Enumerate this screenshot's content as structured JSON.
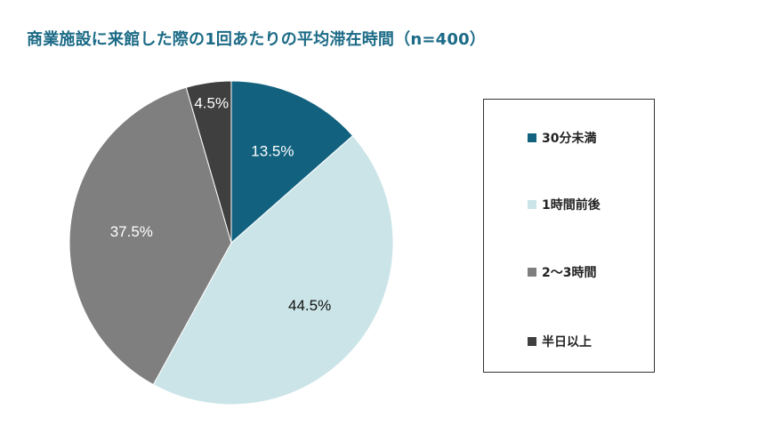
{
  "chart_data": {
    "type": "pie",
    "title": "商業施設に来館した際の1回あたりの平均滞在時間（n=400）",
    "categories": [
      "30分未満",
      "1時間前後",
      "2〜3時間",
      "半日以上"
    ],
    "values": [
      13.5,
      44.5,
      37.5,
      4.5
    ],
    "labels": [
      "13.5%",
      "44.5%",
      "37.5%",
      "4.5%"
    ],
    "colors": [
      "#12627f",
      "#cbe4e8",
      "#7f7f7f",
      "#3f3f3f"
    ],
    "label_colors": [
      "#ffffff",
      "#111111",
      "#ffffff",
      "#ffffff"
    ],
    "legend_position": "right"
  }
}
